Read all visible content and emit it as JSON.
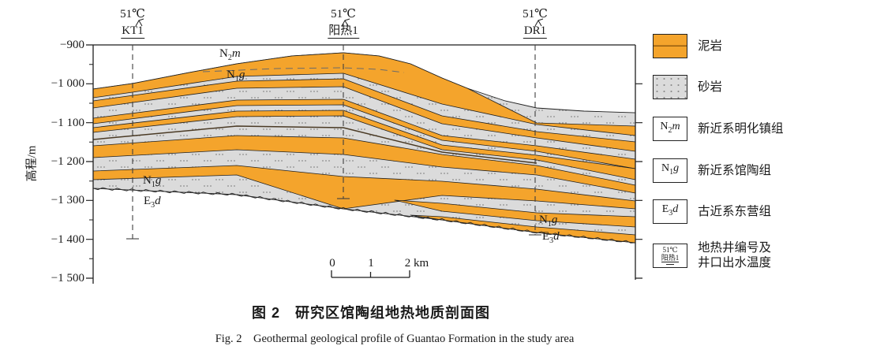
{
  "figure": {
    "caption_zh": "图 2　研究区馆陶组地热地质剖面图",
    "caption_en": "Fig. 2　Geothermal geological profile of Guantao Formation in the study area"
  },
  "axis": {
    "title": "高程/m",
    "ticks": [
      "−900",
      "−1 000",
      "−1 100",
      "−1 200",
      "−1 300",
      "−1 400",
      "−1 500"
    ]
  },
  "wells": [
    {
      "temp": "51℃",
      "name": "KT1"
    },
    {
      "temp": "51℃",
      "name": "阳热1"
    },
    {
      "temp": "51℃",
      "name": "DR1"
    }
  ],
  "formations": {
    "n2m": {
      "p": "N",
      "s": "2",
      "x": "m"
    },
    "n1g": {
      "p": "N",
      "s": "1",
      "x": "g"
    },
    "e3d": {
      "p": "E",
      "s": "3",
      "x": "d"
    }
  },
  "scalebar": {
    "labels": [
      "0",
      "1",
      "2 km"
    ]
  },
  "legend": {
    "items": [
      {
        "label": "泥岩"
      },
      {
        "label": "砂岩"
      },
      {
        "label": "新近系明化镇组"
      },
      {
        "label": "新近系馆陶组"
      },
      {
        "label": "古近系东营组"
      },
      {
        "label_line1": "地热井编号及",
        "label_line2": "井口出水温度"
      }
    ],
    "well_symbol": {
      "temp": "51℃",
      "name": "阳热1"
    }
  },
  "colors": {
    "mudstone": "#F4A42C",
    "sandstone": "#DBDBDB",
    "sandstone_dot": "#8C8C8C",
    "line": "#1f1f1f"
  }
}
